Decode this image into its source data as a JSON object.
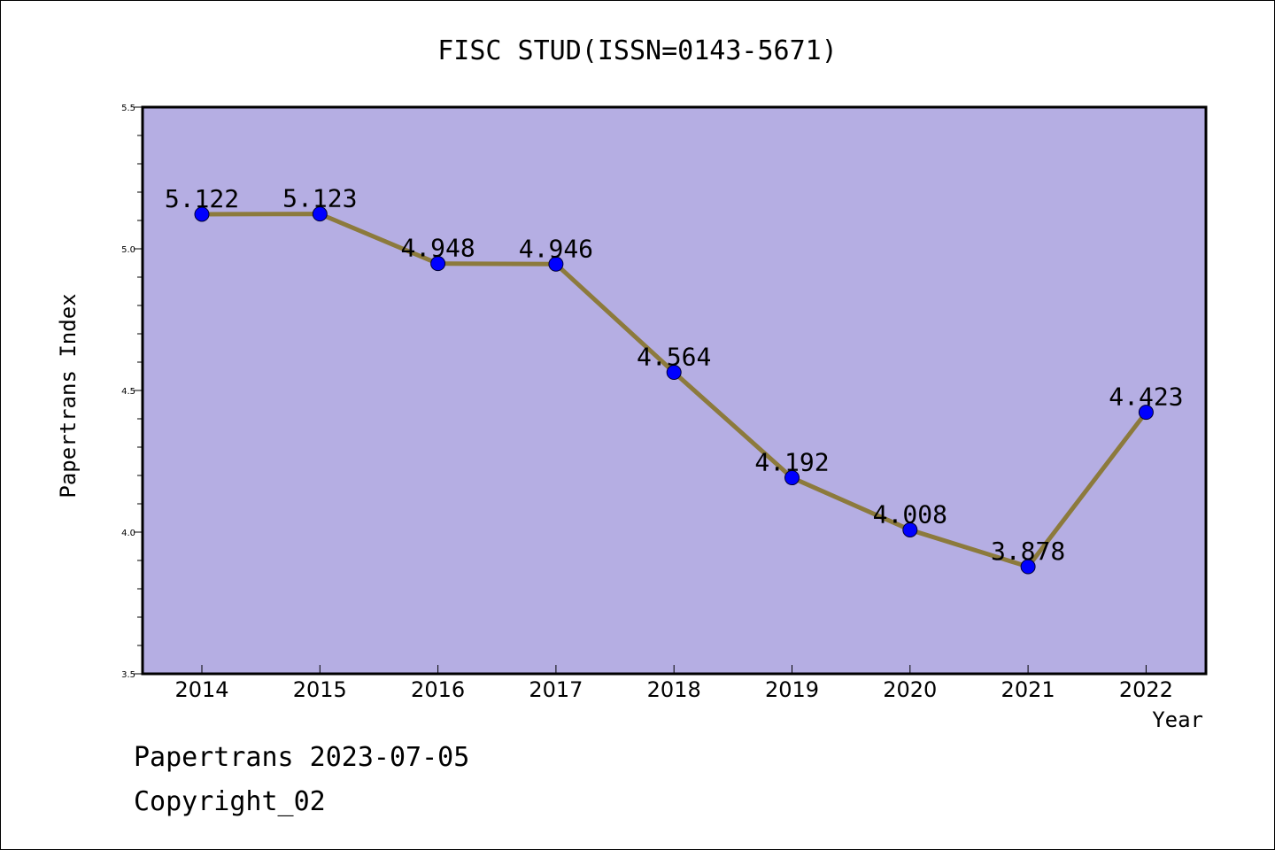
{
  "chart_data": {
    "type": "line",
    "title": "FISC STUD(ISSN=0143-5671)",
    "xlabel": "Year",
    "ylabel": "Papertrans Index",
    "categories": [
      "2014",
      "2015",
      "2016",
      "2017",
      "2018",
      "2019",
      "2020",
      "2021",
      "2022"
    ],
    "values": [
      5.122,
      5.123,
      4.948,
      4.946,
      4.564,
      4.192,
      4.008,
      3.878,
      4.423
    ],
    "point_labels": [
      "5.122",
      "5.123",
      "4.948",
      "4.946",
      "4.564",
      "4.192",
      "4.008",
      "3.878",
      "4.423"
    ],
    "ylim": [
      3.5,
      5.5
    ],
    "yticks": [
      "3.5",
      "4.0",
      "4.5",
      "5.0",
      "5.5"
    ],
    "grid": false,
    "colors": {
      "plot_background": "#b5aee3",
      "line": "#8c7a3c",
      "marker": "#0000ff"
    }
  },
  "footer": {
    "date_line": "Papertrans 2023-07-05",
    "copyright": "Copyright_02"
  }
}
